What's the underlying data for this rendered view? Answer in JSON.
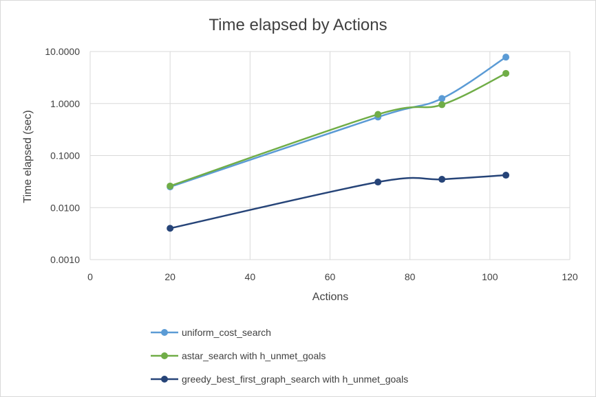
{
  "chart_data": {
    "type": "scatter",
    "title": "Time elapsed by Actions",
    "xlabel": "Actions",
    "ylabel": "Time elapsed (sec)",
    "xlim": [
      0,
      120
    ],
    "ylim": [
      0.001,
      10
    ],
    "yscale": "log",
    "x_ticks": [
      "0",
      "20",
      "40",
      "60",
      "80",
      "100",
      "120"
    ],
    "y_ticks": [
      "0.0010",
      "0.0100",
      "0.1000",
      "1.0000",
      "10.0000"
    ],
    "grid": true,
    "smoothed_lines": true,
    "legend_position": "bottom",
    "series": [
      {
        "name": "uniform_cost_search",
        "color": "#5b9bd5",
        "x": [
          20,
          72,
          88,
          104
        ],
        "y": [
          0.025,
          0.55,
          1.25,
          7.8
        ]
      },
      {
        "name": "astar_search with h_unmet_goals",
        "color": "#70ad47",
        "x": [
          20,
          72,
          88,
          104
        ],
        "y": [
          0.026,
          0.62,
          0.95,
          3.8
        ]
      },
      {
        "name": "greedy_best_first_graph_search with h_unmet_goals",
        "color": "#264478",
        "x": [
          20,
          72,
          88,
          104
        ],
        "y": [
          0.004,
          0.031,
          0.035,
          0.042
        ]
      }
    ]
  }
}
